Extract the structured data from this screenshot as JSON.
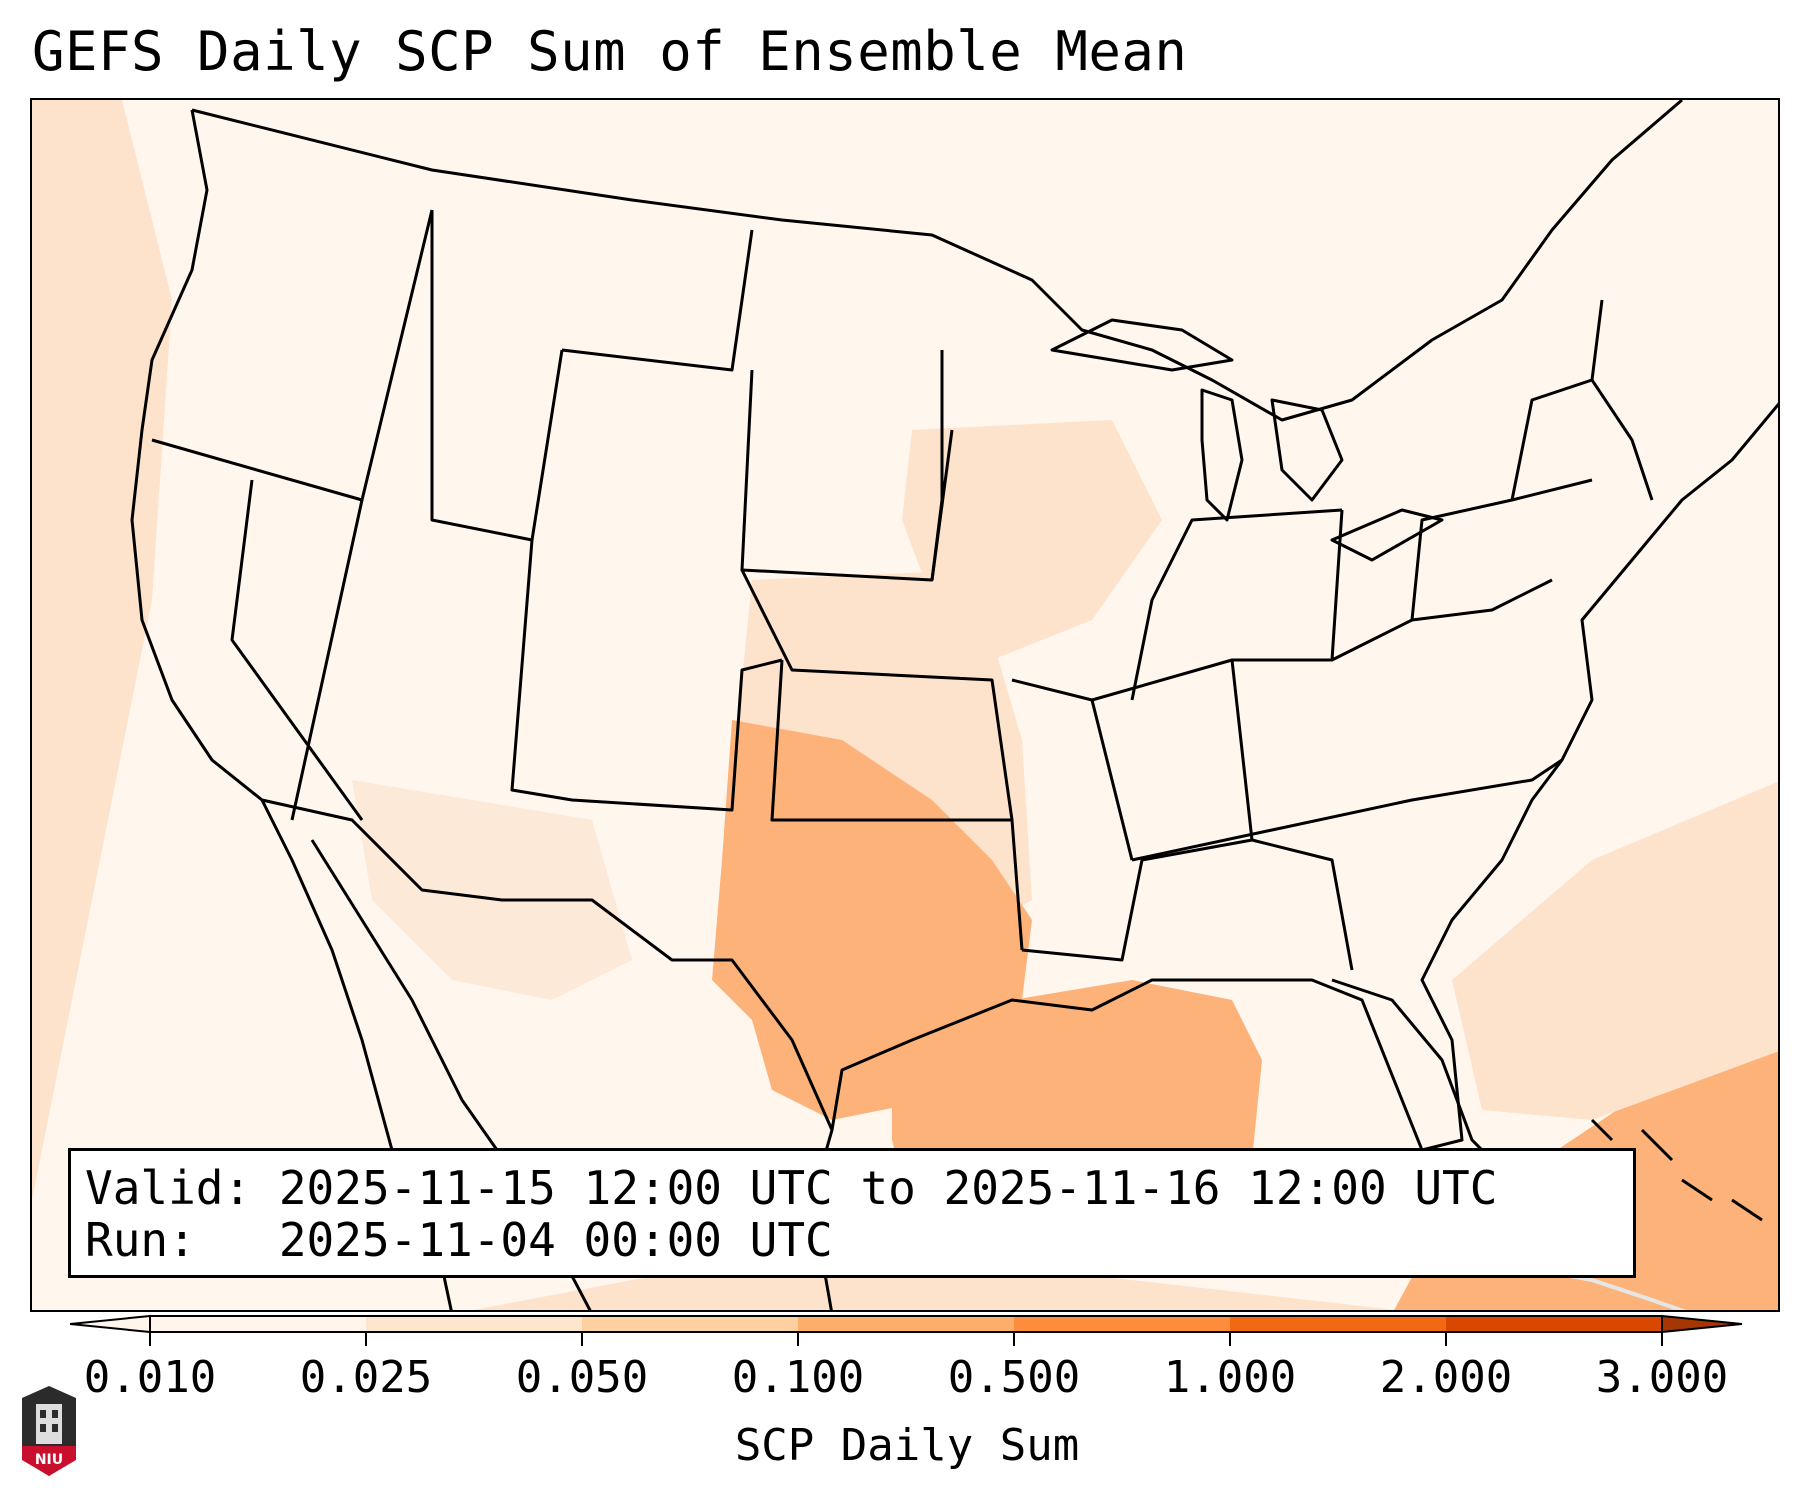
{
  "title": "GEFS Daily SCP Sum of Ensemble Mean",
  "info": {
    "valid": "Valid: 2025-11-15 12:00 UTC to 2025-11-16 12:00 UTC",
    "run": "Run:   2025-11-04 00:00 UTC"
  },
  "colorbar": {
    "label": "SCP Daily Sum",
    "ticks": [
      "0.010",
      "0.025",
      "0.050",
      "0.100",
      "0.500",
      "1.000",
      "2.000",
      "3.000"
    ],
    "colors": [
      "#fff5eb",
      "#fee6ce",
      "#fdd0a2",
      "#fdae6b",
      "#fd8d3c",
      "#f16913",
      "#d94801",
      "#a63603"
    ],
    "extend": "both"
  },
  "map": {
    "projection": "Lambert conformal, CONUS",
    "field_color_light": "#fff3e8",
    "field_color_medium": "#fde1c8",
    "field_color_strong": "#fdae6b",
    "boundary_color": "#000000"
  },
  "logo": {
    "text": "NIU",
    "color": "#c8102e"
  }
}
